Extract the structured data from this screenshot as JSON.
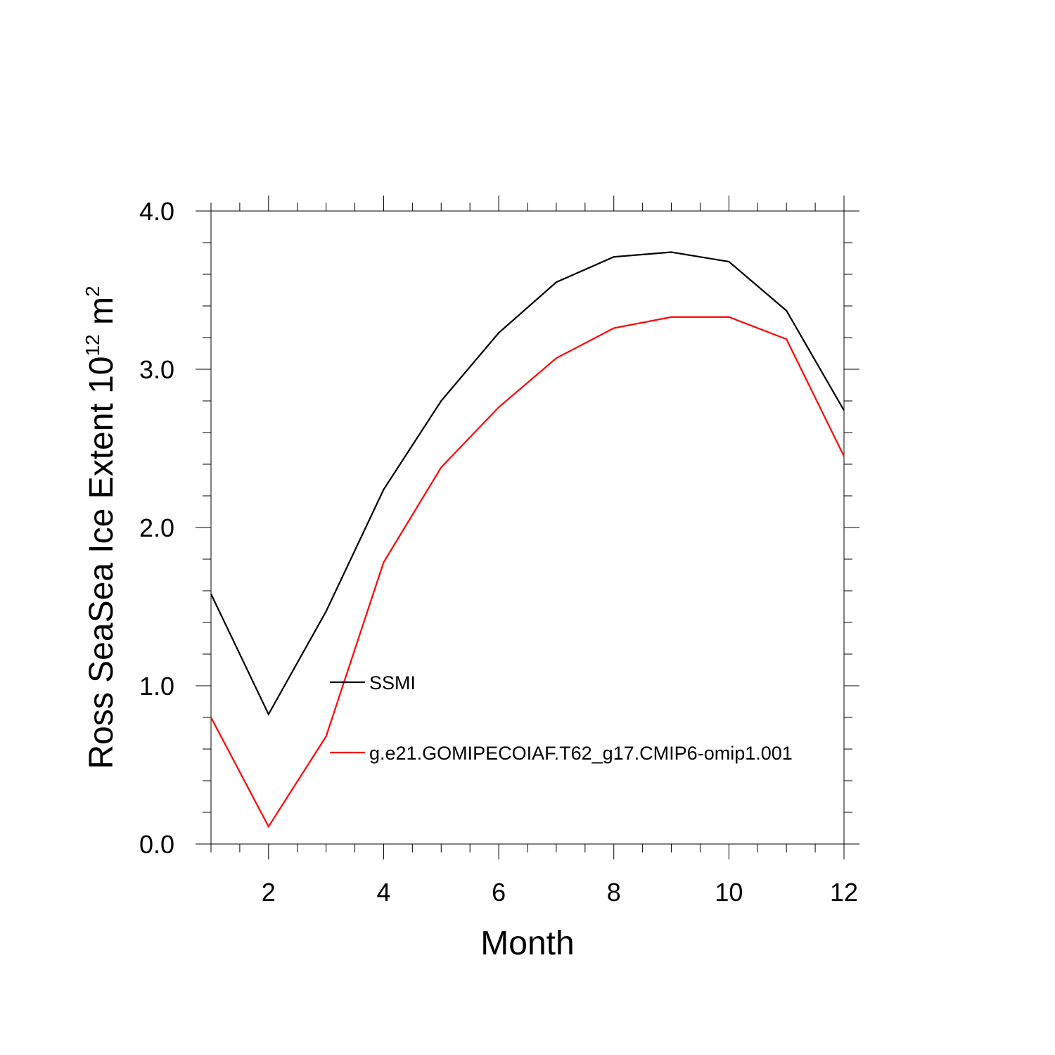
{
  "chart_data": {
    "type": "line",
    "xlabel": "Month",
    "ylabel_parts": {
      "main": "Ross SeaSea Ice Extent 10",
      "exp1": "12",
      "unit": " m",
      "exp2": "2"
    },
    "xlim": [
      1,
      12
    ],
    "ylim": [
      0,
      4
    ],
    "x_ticks": [
      2,
      4,
      6,
      8,
      10,
      12
    ],
    "x_tick_labels": [
      "2",
      "4",
      "6",
      "8",
      "10",
      "12"
    ],
    "y_ticks": [
      0,
      1,
      2,
      3,
      4
    ],
    "y_tick_labels": [
      "0.0",
      "1.0",
      "2.0",
      "3.0",
      "4.0"
    ],
    "grid": false,
    "legend_position": "inside-left",
    "x": [
      1,
      2,
      3,
      4,
      5,
      6,
      7,
      8,
      9,
      10,
      11,
      12
    ],
    "series": [
      {
        "name": "SSMI",
        "color": "#000000",
        "values": [
          1.58,
          0.82,
          1.47,
          2.24,
          2.8,
          3.23,
          3.55,
          3.71,
          3.74,
          3.68,
          3.37,
          2.74
        ]
      },
      {
        "name": "g.e21.GOMIPECOIAF.T62_g17.CMIP6-omip1.001",
        "color": "#ff0000",
        "values": [
          0.8,
          0.11,
          0.68,
          1.78,
          2.38,
          2.76,
          3.07,
          3.26,
          3.33,
          3.33,
          3.19,
          2.45
        ]
      }
    ]
  }
}
